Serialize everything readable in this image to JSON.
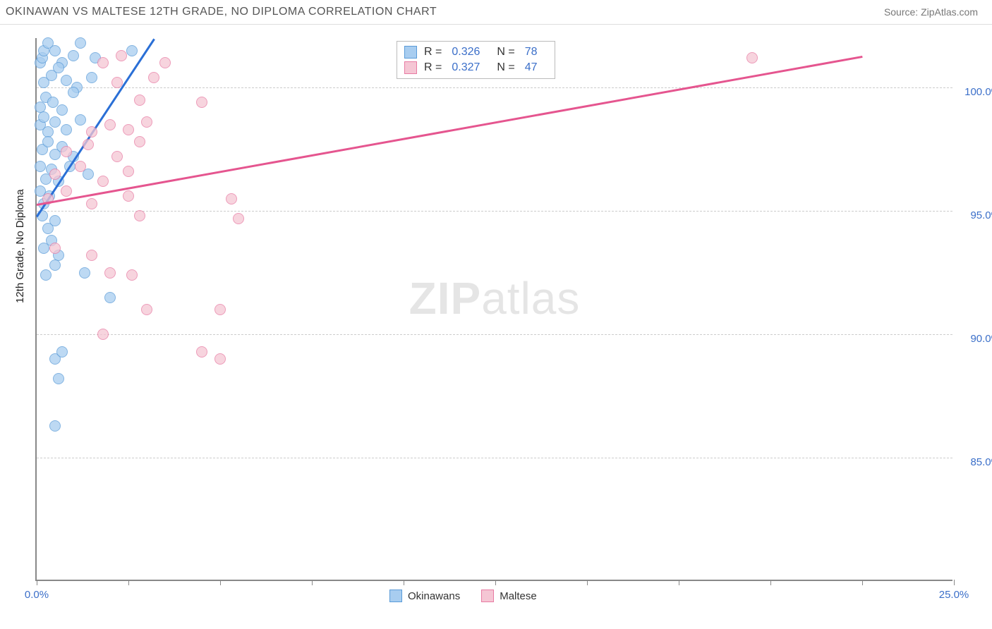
{
  "header": {
    "title": "OKINAWAN VS MALTESE 12TH GRADE, NO DIPLOMA CORRELATION CHART",
    "source": "Source: ZipAtlas.com"
  },
  "chart": {
    "type": "scatter",
    "ylabel": "12th Grade, No Diploma",
    "xlim": [
      0,
      25
    ],
    "ylim": [
      80,
      102
    ],
    "xticks": [
      0,
      2.5,
      5,
      7.5,
      10,
      12.5,
      15,
      17.5,
      20,
      22.5,
      25
    ],
    "xtick_labels": {
      "0": "0.0%",
      "25": "25.0%"
    },
    "yticks": [
      85,
      90,
      95,
      100
    ],
    "ytick_labels": [
      "85.0%",
      "90.0%",
      "95.0%",
      "100.0%"
    ],
    "background_color": "#ffffff",
    "grid_color": "#cccccc",
    "axis_color": "#888888",
    "tick_label_color": "#3b6fc9",
    "watermark": {
      "bold": "ZIP",
      "light": "atlas"
    },
    "series": [
      {
        "name": "Okinawans",
        "marker_fill": "#a8cdf0",
        "marker_stroke": "#5a9bd8",
        "trend_color": "#2a6fd6",
        "marker_radius": 8,
        "r_value": "0.326",
        "n_value": "78",
        "trend": {
          "x1": 0,
          "y1": 94.8,
          "x2": 3.2,
          "y2": 102
        },
        "points": [
          [
            0.1,
            101
          ],
          [
            0.15,
            101.2
          ],
          [
            0.2,
            101.5
          ],
          [
            0.3,
            101.8
          ],
          [
            0.5,
            101.5
          ],
          [
            0.7,
            101
          ],
          [
            1.0,
            101.3
          ],
          [
            1.2,
            101.8
          ],
          [
            1.6,
            101.2
          ],
          [
            2.6,
            101.5
          ],
          [
            0.2,
            100.2
          ],
          [
            0.4,
            100.5
          ],
          [
            0.6,
            100.8
          ],
          [
            0.8,
            100.3
          ],
          [
            1.1,
            100
          ],
          [
            1.5,
            100.4
          ],
          [
            0.1,
            99.2
          ],
          [
            0.25,
            99.6
          ],
          [
            0.45,
            99.4
          ],
          [
            0.7,
            99.1
          ],
          [
            1.0,
            99.8
          ],
          [
            0.1,
            98.5
          ],
          [
            0.2,
            98.8
          ],
          [
            0.3,
            98.2
          ],
          [
            0.5,
            98.6
          ],
          [
            0.8,
            98.3
          ],
          [
            1.2,
            98.7
          ],
          [
            0.15,
            97.5
          ],
          [
            0.3,
            97.8
          ],
          [
            0.5,
            97.3
          ],
          [
            0.7,
            97.6
          ],
          [
            1.0,
            97.2
          ],
          [
            0.1,
            96.8
          ],
          [
            0.25,
            96.3
          ],
          [
            0.4,
            96.7
          ],
          [
            0.6,
            96.2
          ],
          [
            0.9,
            96.8
          ],
          [
            1.4,
            96.5
          ],
          [
            0.1,
            95.8
          ],
          [
            0.2,
            95.3
          ],
          [
            0.35,
            95.6
          ],
          [
            0.15,
            94.8
          ],
          [
            0.3,
            94.3
          ],
          [
            0.5,
            94.6
          ],
          [
            0.2,
            93.5
          ],
          [
            0.4,
            93.8
          ],
          [
            0.6,
            93.2
          ],
          [
            0.25,
            92.4
          ],
          [
            0.5,
            92.8
          ],
          [
            1.3,
            92.5
          ],
          [
            2.0,
            91.5
          ],
          [
            0.5,
            89.0
          ],
          [
            0.7,
            89.3
          ],
          [
            0.6,
            88.2
          ],
          [
            0.5,
            86.3
          ]
        ]
      },
      {
        "name": "Maltese",
        "marker_fill": "#f5c6d4",
        "marker_stroke": "#e87ba3",
        "trend_color": "#e5558f",
        "marker_radius": 8,
        "r_value": "0.327",
        "n_value": "47",
        "trend": {
          "x1": 0,
          "y1": 95.3,
          "x2": 22.5,
          "y2": 101.3
        },
        "points": [
          [
            1.8,
            101
          ],
          [
            2.3,
            101.3
          ],
          [
            3.5,
            101
          ],
          [
            19.5,
            101.2
          ],
          [
            2.2,
            100.2
          ],
          [
            3.2,
            100.4
          ],
          [
            2.8,
            99.5
          ],
          [
            4.5,
            99.4
          ],
          [
            1.5,
            98.2
          ],
          [
            2.0,
            98.5
          ],
          [
            2.5,
            98.3
          ],
          [
            3.0,
            98.6
          ],
          [
            0.8,
            97.4
          ],
          [
            1.4,
            97.7
          ],
          [
            2.2,
            97.2
          ],
          [
            2.8,
            97.8
          ],
          [
            0.5,
            96.5
          ],
          [
            1.2,
            96.8
          ],
          [
            1.8,
            96.2
          ],
          [
            2.5,
            96.6
          ],
          [
            0.3,
            95.5
          ],
          [
            0.8,
            95.8
          ],
          [
            1.5,
            95.3
          ],
          [
            2.5,
            95.6
          ],
          [
            5.3,
            95.5
          ],
          [
            2.8,
            94.8
          ],
          [
            5.5,
            94.7
          ],
          [
            0.5,
            93.5
          ],
          [
            1.5,
            93.2
          ],
          [
            2.0,
            92.5
          ],
          [
            2.6,
            92.4
          ],
          [
            3.0,
            91.0
          ],
          [
            5.0,
            91.0
          ],
          [
            1.8,
            90.0
          ],
          [
            4.5,
            89.3
          ],
          [
            5.0,
            89.0
          ]
        ]
      }
    ],
    "legend": [
      {
        "label": "Okinawans",
        "fill": "#a8cdf0",
        "stroke": "#5a9bd8"
      },
      {
        "label": "Maltese",
        "fill": "#f5c6d4",
        "stroke": "#e87ba3"
      }
    ]
  }
}
